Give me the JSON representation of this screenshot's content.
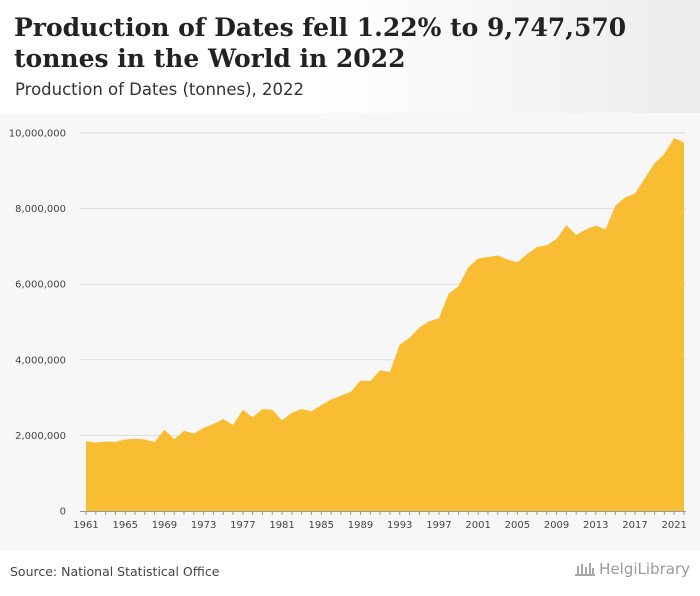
{
  "header": {
    "title": "Production of Dates fell 1.22% to 9,747,570 tonnes in the World in 2022",
    "subtitle": "Production of Dates (tonnes), 2022"
  },
  "footer": {
    "source": "Source: National Statistical Office",
    "logo": "HelgiLibrary"
  },
  "colors": {
    "area": "#f9bd34",
    "grid": "#dddddd",
    "axis": "#999999"
  },
  "chart_data": {
    "type": "area",
    "title": "Production of Dates (tonnes), 2022",
    "xlabel": "",
    "ylabel": "",
    "ylim": [
      0,
      10000000
    ],
    "xlim": [
      1961,
      2022
    ],
    "grid": true,
    "legend": "none",
    "y_ticks": [
      0,
      2000000,
      4000000,
      6000000,
      8000000,
      10000000
    ],
    "y_tick_labels": [
      "0",
      "2,000,000",
      "4,000,000",
      "6,000,000",
      "8,000,000",
      "10,000,000"
    ],
    "x_ticks": [
      1961,
      1965,
      1969,
      1973,
      1977,
      1981,
      1985,
      1989,
      1993,
      1997,
      2001,
      2005,
      2009,
      2013,
      2017,
      2021
    ],
    "x_tick_labels": [
      "1961",
      "1965",
      "1969",
      "1973",
      "1977",
      "1981",
      "1985",
      "1989",
      "1993",
      "1997",
      "2001",
      "2005",
      "2009",
      "2013",
      "2017",
      "2021"
    ],
    "series": [
      {
        "x": [
          1961,
          1962,
          1963,
          1964,
          1965,
          1966,
          1967,
          1968,
          1969,
          1970,
          1971,
          1972,
          1973,
          1974,
          1975,
          1976,
          1977,
          1978,
          1979,
          1980,
          1981,
          1982,
          1983,
          1984,
          1985,
          1986,
          1987,
          1988,
          1989,
          1990,
          1991,
          1992,
          1993,
          1994,
          1995,
          1996,
          1997,
          1998,
          1999,
          2000,
          2001,
          2002,
          2003,
          2004,
          2005,
          2006,
          2007,
          2008,
          2009,
          2010,
          2011,
          2012,
          2013,
          2014,
          2015,
          2016,
          2017,
          2018,
          2019,
          2020,
          2021,
          2022
        ],
        "values": [
          1850000,
          1810000,
          1840000,
          1830000,
          1890000,
          1910000,
          1890000,
          1830000,
          2150000,
          1900000,
          2120000,
          2050000,
          2200000,
          2300000,
          2430000,
          2280000,
          2680000,
          2480000,
          2700000,
          2680000,
          2400000,
          2600000,
          2700000,
          2640000,
          2800000,
          2950000,
          3050000,
          3150000,
          3450000,
          3440000,
          3720000,
          3680000,
          4400000,
          4580000,
          4850000,
          5020000,
          5100000,
          5750000,
          5950000,
          6450000,
          6680000,
          6720000,
          6760000,
          6650000,
          6580000,
          6800000,
          6980000,
          7030000,
          7200000,
          7560000,
          7300000,
          7450000,
          7550000,
          7450000,
          8080000,
          8300000,
          8400000,
          8800000,
          9200000,
          9450000,
          9868000,
          9747570
        ]
      }
    ]
  }
}
